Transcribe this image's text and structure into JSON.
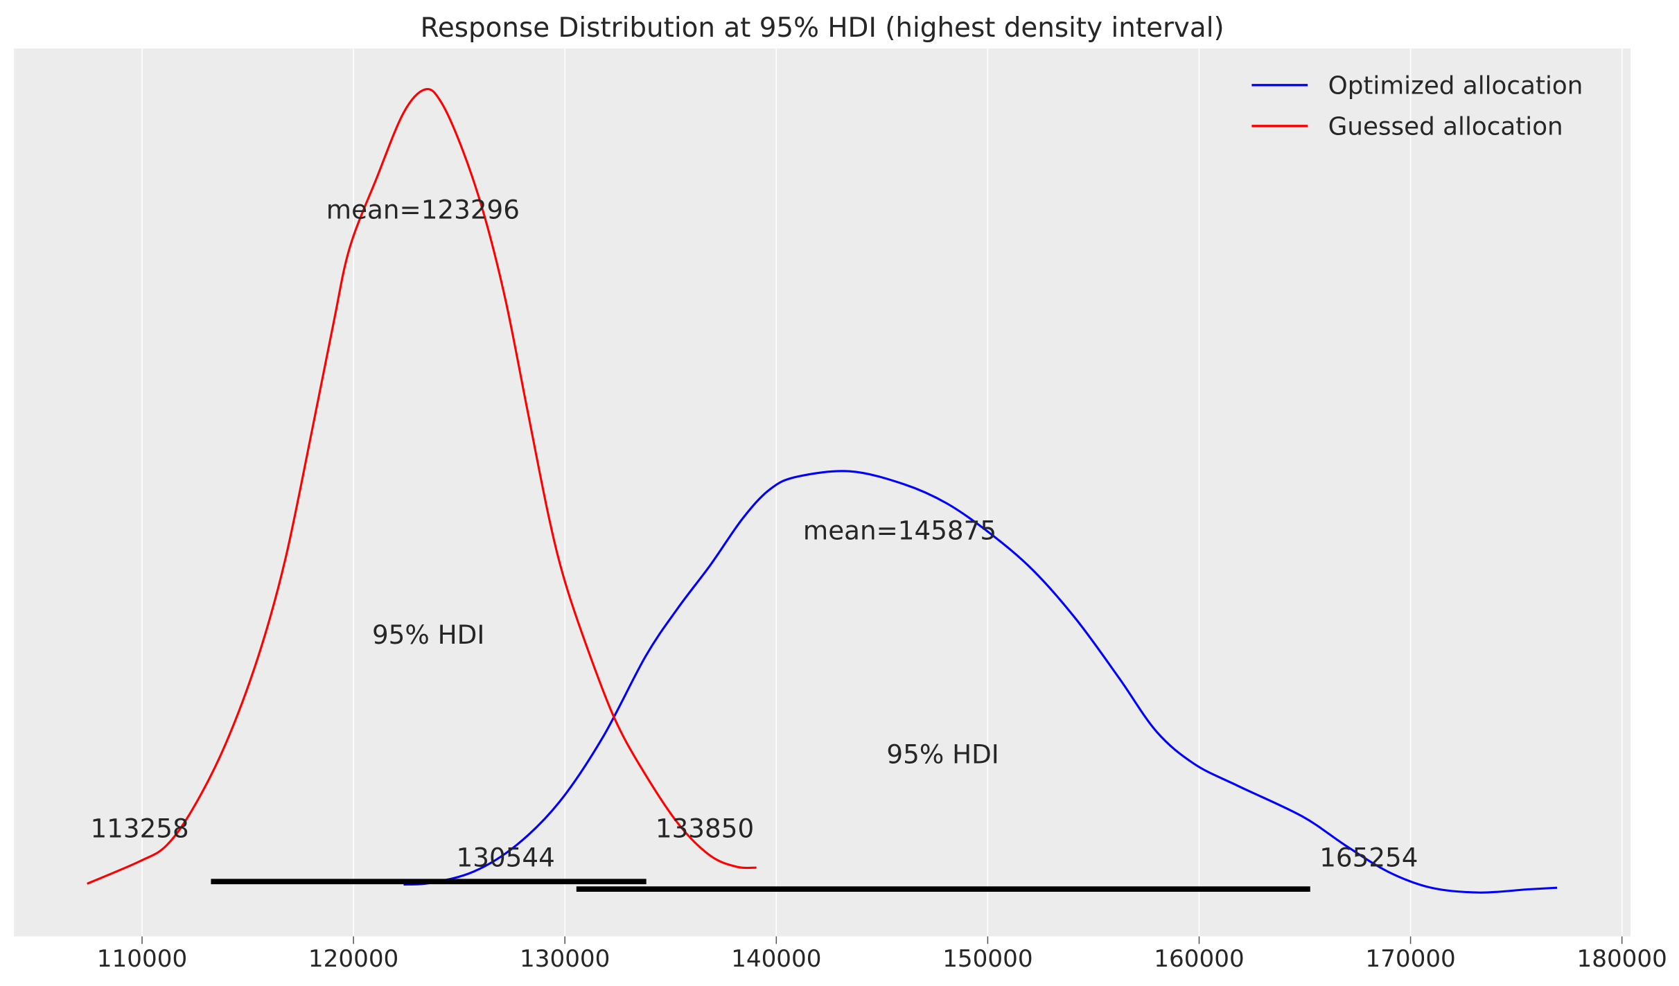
{
  "chart_data": {
    "type": "line",
    "title": "Response Distribution at 95% HDI (highest density interval)",
    "xlabel": "",
    "ylabel": "",
    "xlim": [
      104000,
      180500
    ],
    "x_ticks": [
      110000,
      120000,
      130000,
      140000,
      150000,
      160000,
      170000,
      180000
    ],
    "x_tick_labels": [
      "110000",
      "120000",
      "130000",
      "140000",
      "150000",
      "160000",
      "170000",
      "180000"
    ],
    "y_axis_visible": false,
    "grid": "vertical",
    "legend_position": "top-right",
    "background": "#ececec",
    "series": [
      {
        "name": "Optimized allocation",
        "color": "#0000ff",
        "mean": 145875,
        "mean_label": "mean=145875",
        "hdi_label": "95% HDI",
        "hdi": [
          130544,
          165254
        ],
        "hdi_low_label": "130544",
        "hdi_high_label": "165254",
        "x": [
          122370,
          123640,
          125680,
          127710,
          129750,
          131790,
          133820,
          135350,
          136870,
          138400,
          139670,
          140940,
          143480,
          146030,
          148070,
          150100,
          152140,
          154180,
          156210,
          157990,
          159770,
          161810,
          164860,
          166900,
          168930,
          170970,
          173250,
          175550,
          176930
        ],
        "density_relative": [
          0.011,
          0.013,
          0.027,
          0.06,
          0.114,
          0.194,
          0.295,
          0.355,
          0.408,
          0.466,
          0.502,
          0.518,
          0.525,
          0.509,
          0.485,
          0.448,
          0.402,
          0.341,
          0.268,
          0.201,
          0.161,
          0.134,
          0.096,
          0.06,
          0.027,
          0.007,
          0.001,
          0.005,
          0.007
        ]
      },
      {
        "name": "Guessed allocation",
        "color": "#ff0000",
        "mean": 123296,
        "mean_label": "mean=123296",
        "hdi_label": "95% HDI",
        "hdi": [
          113258,
          133850
        ],
        "hdi_low_label": "113258",
        "hdi_high_label": "133850",
        "x": [
          107400,
          109900,
          111170,
          112440,
          113970,
          115500,
          116770,
          118040,
          119060,
          119820,
          121100,
          122370,
          123390,
          124150,
          125170,
          126190,
          127200,
          128220,
          129240,
          130000,
          131020,
          132290,
          133570,
          135350,
          136870,
          138140,
          139060
        ],
        "density_relative": [
          0.012,
          0.04,
          0.06,
          0.107,
          0.187,
          0.295,
          0.415,
          0.576,
          0.71,
          0.803,
          0.89,
          0.971,
          1.0,
          0.984,
          0.924,
          0.843,
          0.737,
          0.602,
          0.468,
          0.388,
          0.308,
          0.221,
          0.158,
          0.087,
          0.047,
          0.033,
          0.032
        ]
      }
    ]
  }
}
